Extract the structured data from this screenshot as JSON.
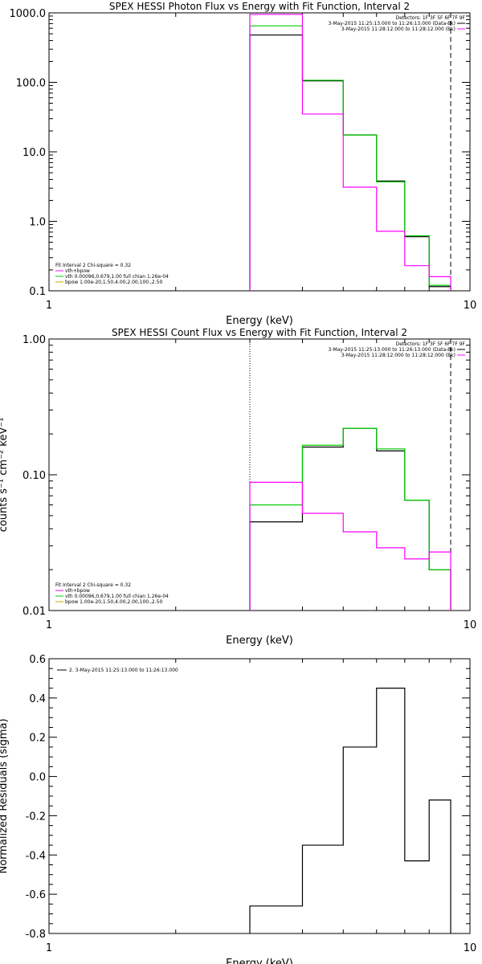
{
  "colors": {
    "data": "#000000",
    "model_total": "#ff00ff",
    "model_vth": "#00cc00",
    "model_bpow": "#ccaa00",
    "background": "#ff00ff",
    "axis": "#000000"
  },
  "chart_data": [
    {
      "type": "line",
      "title": "SPEX HESSI Photon Flux vs Energy with Fit Function, Interval 2",
      "xlabel": "Energy (keV)",
      "ylabel": "",
      "xscale": "log",
      "yscale": "log",
      "xlim": [
        1,
        10
      ],
      "ylim": [
        0.1,
        1000
      ],
      "x_tick_labels": [
        "1",
        "10"
      ],
      "y_tick_labels": [
        "0.1",
        "1.0",
        "10.0",
        "100.0",
        "1000.0"
      ],
      "vlines": [
        {
          "x": 3.0,
          "style": "dotted",
          "color_key": "model_vth"
        },
        {
          "x": 9.0,
          "style": "dashed",
          "color_key": "axis"
        }
      ],
      "legend_top_right": [
        "Detectors: 1F 3F 5F 6F 7F 9F",
        "3-May-2015 11:25:13.000 to 11:26:13.000 (Data-Bk)",
        "3-May-2015 11:28:12.000 to 11:28:12.000 (Bk)"
      ],
      "legend_top_right_colors": [
        "",
        "data",
        "background"
      ],
      "legend_bottom_left_header": "Fit Interval 2   Chi-square = 0.32",
      "legend_bottom_left": [
        "vth+bpow",
        "vth 0.00096,0.679,1.00   full chian 1.26e-04",
        "bpow 1.00e-20,1.50,4.00,2.00,100.,2.50"
      ],
      "legend_bottom_left_colors": [
        "model_total",
        "model_vth",
        "model_bpow"
      ],
      "bin_edges": [
        3.0,
        4.0,
        5.0,
        6.0,
        7.0,
        8.0,
        9.0
      ],
      "series": [
        {
          "name": "3-May-2015 11:25:13.000 to 11:26:13.000 (Data-Bk)",
          "color_key": "data",
          "values": [
            480,
            105,
            17.5,
            3.8,
            0.6,
            0.115
          ]
        },
        {
          "name": "vth 0.00096,0.679,1.00   full chian 1.26e-04",
          "color_key": "model_vth",
          "values": [
            650,
            107,
            17.5,
            3.7,
            0.62,
            0.12
          ]
        },
        {
          "name": "3-May-2015 11:28:12.000 to 11:28:12.000 (Bk)",
          "color_key": "background",
          "values": [
            950,
            35,
            3.1,
            0.72,
            0.23,
            0.16
          ]
        }
      ]
    },
    {
      "type": "line",
      "title": "SPEX HESSI Count Flux vs Energy with Fit Function, Interval 2",
      "xlabel": "Energy (keV)",
      "ylabel": "counts s⁻¹ cm⁻² keV⁻¹",
      "xscale": "log",
      "yscale": "log",
      "xlim": [
        1,
        10
      ],
      "ylim": [
        0.01,
        1.0
      ],
      "x_tick_labels": [
        "1",
        "10"
      ],
      "y_tick_labels": [
        "0.01",
        "0.10",
        "1.00"
      ],
      "vlines": [
        {
          "x": 3.0,
          "style": "dotted",
          "color_key": "axis"
        },
        {
          "x": 9.0,
          "style": "dashed",
          "color_key": "axis"
        }
      ],
      "legend_top_right": [
        "Detectors: 1F 3F 5F 6F 7F 9F",
        "3-May-2015 11:25:13.000 to 11:26:13.000 (Data-Bk)",
        "3-May-2015 11:28:12.000 to 11:28:12.000 (Bk)"
      ],
      "legend_top_right_colors": [
        "",
        "data",
        "background"
      ],
      "legend_bottom_left_header": "Fit Interval 2   Chi-square = 0.32",
      "legend_bottom_left": [
        "vth+bpow",
        "vth 0.00096,0.679,1.00   full chian 1.26e-04",
        "bpow 1.00e-20,1.50,4.00,2.00,100.,2.50"
      ],
      "legend_bottom_left_colors": [
        "model_total",
        "model_vth",
        "model_bpow"
      ],
      "bin_edges": [
        3.0,
        4.0,
        5.0,
        6.0,
        7.0,
        8.0,
        9.0
      ],
      "series": [
        {
          "name": "3-May-2015 11:25:13.000 to 11:26:13.000 (Data-Bk)",
          "color_key": "data",
          "values": [
            0.045,
            0.16,
            0.22,
            0.15,
            0.065,
            0.02
          ]
        },
        {
          "name": "vth 0.00096,0.679,1.00   full chian 1.26e-04",
          "color_key": "model_vth",
          "values": [
            0.06,
            0.165,
            0.22,
            0.155,
            0.065,
            0.02
          ]
        },
        {
          "name": "3-May-2015 11:28:12.000 to 11:28:12.000 (Bk)",
          "color_key": "background",
          "values": [
            0.088,
            0.052,
            0.038,
            0.029,
            0.024,
            0.027
          ]
        }
      ]
    },
    {
      "type": "line",
      "title": "",
      "xlabel": "Energy (keV)",
      "ylabel": "Normalized Residuals (sigma)",
      "xscale": "log",
      "yscale": "linear",
      "xlim": [
        1,
        10
      ],
      "ylim": [
        -0.8,
        0.6
      ],
      "x_tick_labels": [
        "1",
        "10"
      ],
      "y_tick_labels": [
        "-0.8",
        "-0.6",
        "-0.4",
        "-0.2",
        "0.0",
        "0.2",
        "0.4",
        "0.6"
      ],
      "vlines": [],
      "legend_top_left": [
        "2.  3-May-2015 11:25:13.000 to 11:26:13.000"
      ],
      "legend_top_left_colors": [
        "data"
      ],
      "bin_edges": [
        3.0,
        4.0,
        5.0,
        6.0,
        7.0,
        8.0,
        9.0
      ],
      "series": [
        {
          "name": "2.  3-May-2015 11:25:13.000 to 11:26:13.000",
          "color_key": "data",
          "values": [
            -0.66,
            -0.35,
            0.15,
            0.45,
            -0.43,
            -0.12
          ]
        }
      ]
    }
  ]
}
